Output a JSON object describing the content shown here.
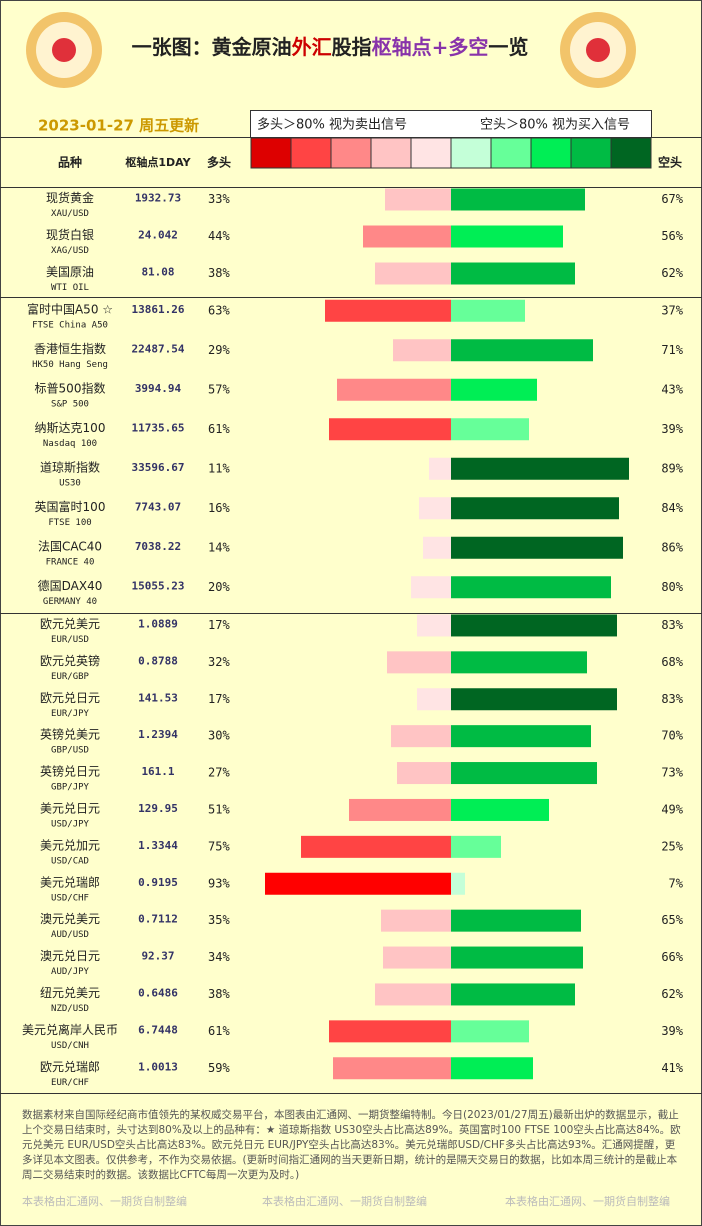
{
  "chart_data": {
    "type": "diverging-bar",
    "title": [
      "一张图：黄金原油",
      "外汇",
      "股指",
      "枢轴点+多空",
      "一览"
    ],
    "date": "2023-01-27 周五更新",
    "legend": {
      "long_text": "多头＞80% 视为卖出信号",
      "short_text": "空头＞80% 视为买入信号",
      "colors": [
        "#dd0000",
        "#ff4444",
        "#ff8888",
        "#ffc4c4",
        "#ffe4e4",
        "#c4ffd8",
        "#66ff99",
        "#00ee55",
        "#00bb44",
        "#006622"
      ]
    },
    "headers": {
      "name": "品种",
      "pivot": "枢轴点1DAY",
      "long": "多头",
      "short": "空头"
    },
    "categories": [
      "现货黄金",
      "现货白银",
      "美国原油",
      "富时中国A50 ☆",
      "香港恒生指数",
      "标普500指数",
      "纳斯达克100",
      "道琼斯指数",
      "英国富时100",
      "法国CAC40",
      "德国DAX40",
      "欧元兑美元",
      "欧元兑英镑",
      "欧元兑日元",
      "英镑兑美元",
      "英镑兑日元",
      "美元兑日元",
      "美元兑加元",
      "美元兑瑞郎",
      "澳元兑美元",
      "澳元兑日元",
      "纽元兑美元",
      "美元兑离岸人民币",
      "欧元兑瑞郎"
    ],
    "codes": [
      "XAU/USD",
      "XAG/USD",
      "WTI OIL",
      "FTSE China A50",
      "HK50 Hang Seng",
      "S&P 500",
      "Nasdaq 100",
      "US30",
      "FTSE 100",
      "FRANCE 40",
      "GERMANY 40",
      "EUR/USD",
      "EUR/GBP",
      "EUR/JPY",
      "GBP/USD",
      "GBP/JPY",
      "USD/JPY",
      "USD/CAD",
      "USD/CHF",
      "AUD/USD",
      "AUD/JPY",
      "NZD/USD",
      "USD/CNH",
      "EUR/CHF"
    ],
    "pivots": [
      "1932.73",
      "24.042",
      "81.08",
      "13861.26",
      "22487.54",
      "3994.94",
      "11735.65",
      "33596.67",
      "7743.07",
      "7038.22",
      "15055.23",
      "1.0889",
      "0.8788",
      "141.53",
      "1.2394",
      "161.1",
      "129.95",
      "1.3344",
      "0.9195",
      "0.7112",
      "92.37",
      "0.6486",
      "6.7448",
      "1.0013"
    ],
    "series": [
      {
        "name": "多头",
        "values": [
          33,
          44,
          38,
          63,
          29,
          57,
          61,
          11,
          16,
          14,
          20,
          17,
          32,
          17,
          30,
          27,
          51,
          75,
          93,
          35,
          34,
          38,
          61,
          59
        ],
        "value_labels": [
          "33%",
          "44%",
          "38%",
          "63%",
          "29%",
          "57%",
          "61%",
          "11%",
          "16%",
          "14%",
          "20%",
          "17%",
          "32%",
          "17%",
          "30%",
          "27%",
          "51%",
          "75%",
          "93%",
          "35%",
          "34%",
          "38%",
          "61%",
          "59%"
        ],
        "colors": [
          "#ffc4c4",
          "#ff8888",
          "#ffc4c4",
          "#ff4444",
          "#ffc4c4",
          "#ff8888",
          "#ff4444",
          "#ffe4e4",
          "#ffe4e4",
          "#ffe4e4",
          "#ffe4e4",
          "#ffe4e4",
          "#ffc4c4",
          "#ffe4e4",
          "#ffc4c4",
          "#ffc4c4",
          "#ff8888",
          "#ff4444",
          "#ff0000",
          "#ffc4c4",
          "#ffc4c4",
          "#ffc4c4",
          "#ff4444",
          "#ff8888"
        ]
      },
      {
        "name": "空头",
        "values": [
          67,
          56,
          62,
          37,
          71,
          43,
          39,
          89,
          84,
          86,
          80,
          83,
          68,
          83,
          70,
          73,
          49,
          25,
          7,
          65,
          66,
          62,
          39,
          41
        ],
        "value_labels": [
          "67%",
          "56%",
          "62%",
          "37%",
          "71%",
          "43%",
          "39%",
          "89%",
          "84%",
          "86%",
          "80%",
          "83%",
          "68%",
          "83%",
          "70%",
          "73%",
          "49%",
          "25%",
          "7%",
          "65%",
          "66%",
          "62%",
          "39%",
          "41%"
        ],
        "colors": [
          "#00bb44",
          "#00ee55",
          "#00bb44",
          "#66ff99",
          "#00bb44",
          "#00ee55",
          "#66ff99",
          "#006622",
          "#006622",
          "#006622",
          "#00bb44",
          "#006622",
          "#00bb44",
          "#006622",
          "#00bb44",
          "#00bb44",
          "#00ee55",
          "#66ff99",
          "#c4ffd8",
          "#00bb44",
          "#00bb44",
          "#00bb44",
          "#66ff99",
          "#00ee55"
        ]
      }
    ],
    "footer": {
      "note": "数据素材来自国际经纪商市值领先的某权威交易平台，本图表由汇通网、一期货整编特制。今日(2023/01/27周五)最新出炉的数据显示，截止上个交易日结束时，头寸达到80%及以上的品种有：★ 道琼斯指数 US30空头占比高达89%。英国富时100 FTSE 100空头占比高达84%。欧元兑美元 EUR/USD空头占比高达83%。欧元兑日元 EUR/JPY空头占比高达83%。美元兑瑞郎USD/CHF多头占比高达93%。汇通网提醒，更多详见本文图表。仅供参考，不作为交易依据。(更新时间指汇通网的当天更新日期，统计的是隔天交易日的数据，比如本周三统计的是截止本周二交易结束时的数据。该数据比CFTC每周一次更为及时。)",
      "credits": [
        "本表格由汇通网、一期货自制整编",
        "本表格由汇通网、一期货自制整编",
        "本表格由汇通网、一期货自制整编"
      ]
    }
  }
}
